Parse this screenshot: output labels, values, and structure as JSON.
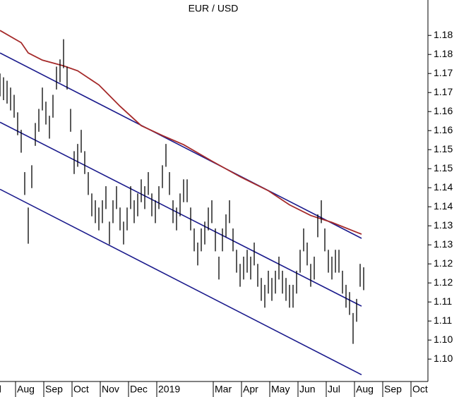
{
  "chart_data": {
    "type": "stock",
    "title": "EUR / USD",
    "xlim": [
      0.45,
      15.575
    ],
    "ylim": [
      1.0943,
      1.1943
    ],
    "xticks": [
      {
        "value": 0,
        "label": "Jul"
      },
      {
        "value": 1,
        "label": "Aug"
      },
      {
        "value": 2,
        "label": "Sep"
      },
      {
        "value": 3,
        "label": "Oct"
      },
      {
        "value": 4,
        "label": "Nov"
      },
      {
        "value": 5,
        "label": "Dec"
      },
      {
        "value": 6,
        "label": "2019"
      },
      {
        "value": 8,
        "label": "Mar"
      },
      {
        "value": 9,
        "label": "Apr"
      },
      {
        "value": 10,
        "label": "May"
      },
      {
        "value": 11,
        "label": "Jun"
      },
      {
        "value": 12,
        "label": "Jul"
      },
      {
        "value": 13,
        "label": "Aug"
      },
      {
        "value": 14,
        "label": "Sep"
      },
      {
        "value": 15,
        "label": "Oct"
      }
    ],
    "yticks": [
      {
        "value": 1.1,
        "label": "1.10"
      },
      {
        "value": 1.105,
        "label": "1.10"
      },
      {
        "value": 1.11,
        "label": "1.11"
      },
      {
        "value": 1.115,
        "label": "1.11"
      },
      {
        "value": 1.12,
        "label": "1.12"
      },
      {
        "value": 1.125,
        "label": "1.12"
      },
      {
        "value": 1.13,
        "label": "1.13"
      },
      {
        "value": 1.135,
        "label": "1.13"
      },
      {
        "value": 1.14,
        "label": "1.14"
      },
      {
        "value": 1.145,
        "label": "1.14"
      },
      {
        "value": 1.15,
        "label": "1.15"
      },
      {
        "value": 1.155,
        "label": "1.15"
      },
      {
        "value": 1.16,
        "label": "1.16"
      },
      {
        "value": 1.165,
        "label": "1.16"
      },
      {
        "value": 1.17,
        "label": "1.17"
      },
      {
        "value": 1.175,
        "label": "1.17"
      },
      {
        "value": 1.18,
        "label": "1.18"
      },
      {
        "value": 1.185,
        "label": "1.18"
      }
    ],
    "price": {
      "color": "#000000",
      "x": [
        0.45,
        0.575,
        0.7,
        0.825,
        0.95,
        1.075,
        1.2,
        1.325,
        1.45,
        1.575,
        1.7,
        1.825,
        1.95,
        2.075,
        2.2,
        2.325,
        2.45,
        2.575,
        2.7,
        2.825,
        2.95,
        3.075,
        3.2,
        3.325,
        3.45,
        3.575,
        3.7,
        3.825,
        3.95,
        4.075,
        4.2,
        4.325,
        4.45,
        4.575,
        4.7,
        4.825,
        4.95,
        5.075,
        5.2,
        5.325,
        5.45,
        5.575,
        5.7,
        5.825,
        5.95,
        6.075,
        6.2,
        6.325,
        6.45,
        6.575,
        6.7,
        6.825,
        6.95,
        7.075,
        7.2,
        7.325,
        7.45,
        7.575,
        7.7,
        7.825,
        7.95,
        8.075,
        8.2,
        8.325,
        8.45,
        8.575,
        8.7,
        8.825,
        8.95,
        9.075,
        9.2,
        9.325,
        9.45,
        9.575,
        9.7,
        9.825,
        9.95,
        10.075,
        10.2,
        10.325,
        10.45,
        10.575,
        10.7,
        10.825,
        10.95,
        11.075,
        11.2,
        11.325,
        11.45,
        11.575,
        11.7,
        11.825,
        11.95,
        12.075,
        12.2,
        12.325,
        12.45,
        12.575,
        12.7,
        12.825,
        12.95,
        13.075,
        13.2,
        13.325
      ],
      "high": [
        1.175,
        1.174,
        1.1731,
        1.1713,
        1.1694,
        1.1648,
        1.1602,
        1.1491,
        1.1398,
        1.1509,
        1.162,
        1.1657,
        1.1713,
        1.1676,
        1.1639,
        1.1694,
        1.1768,
        1.1787,
        1.184,
        1.1768,
        1.1657,
        1.1546,
        1.1565,
        1.1602,
        1.1546,
        1.1491,
        1.1435,
        1.1417,
        1.1398,
        1.1417,
        1.1454,
        1.1361,
        1.1417,
        1.1454,
        1.1398,
        1.1361,
        1.1398,
        1.1454,
        1.1417,
        1.1435,
        1.1472,
        1.1454,
        1.1491,
        1.1435,
        1.1417,
        1.1454,
        1.1509,
        1.1565,
        1.1491,
        1.1417,
        1.1398,
        1.1435,
        1.1472,
        1.1472,
        1.1398,
        1.1343,
        1.1306,
        1.1343,
        1.1361,
        1.1398,
        1.1417,
        1.1343,
        1.1269,
        1.1343,
        1.138,
        1.1417,
        1.1343,
        1.1287,
        1.125,
        1.1269,
        1.1287,
        1.1269,
        1.1306,
        1.125,
        1.1213,
        1.1195,
        1.1232,
        1.1213,
        1.1232,
        1.1269,
        1.1232,
        1.1213,
        1.1195,
        1.1195,
        1.1232,
        1.1287,
        1.1343,
        1.1306,
        1.125,
        1.1269,
        1.138,
        1.1417,
        1.1343,
        1.1287,
        1.1269,
        1.1287,
        1.1287,
        1.1232,
        1.1195,
        1.1176,
        1.1121,
        1.1158,
        1.125,
        1.1241
      ],
      "low": [
        1.169,
        1.168,
        1.1671,
        1.1653,
        1.1634,
        1.1588,
        1.1542,
        1.1431,
        1.1303,
        1.1449,
        1.156,
        1.1597,
        1.1653,
        1.1616,
        1.1579,
        1.1634,
        1.1708,
        1.1727,
        1.1764,
        1.1708,
        1.1597,
        1.1486,
        1.1505,
        1.1542,
        1.1486,
        1.1431,
        1.1375,
        1.1357,
        1.1338,
        1.1357,
        1.1394,
        1.1301,
        1.1357,
        1.1394,
        1.1338,
        1.1301,
        1.1338,
        1.1394,
        1.1357,
        1.1375,
        1.1412,
        1.1394,
        1.1431,
        1.1375,
        1.1357,
        1.1394,
        1.1449,
        1.1505,
        1.1431,
        1.1357,
        1.1338,
        1.1375,
        1.1412,
        1.1412,
        1.1338,
        1.1283,
        1.1246,
        1.1283,
        1.1301,
        1.1338,
        1.1357,
        1.1283,
        1.1209,
        1.1283,
        1.132,
        1.1357,
        1.1283,
        1.1227,
        1.119,
        1.1209,
        1.1227,
        1.1209,
        1.1246,
        1.119,
        1.1153,
        1.1135,
        1.1172,
        1.1153,
        1.1172,
        1.1209,
        1.1172,
        1.1153,
        1.1135,
        1.1135,
        1.1172,
        1.1227,
        1.1283,
        1.1246,
        1.119,
        1.1209,
        1.132,
        1.1357,
        1.1283,
        1.1227,
        1.1209,
        1.1227,
        1.1227,
        1.1172,
        1.1135,
        1.1116,
        1.104,
        1.1098,
        1.119,
        1.1181
      ]
    },
    "moving_average": {
      "color": "#a52a2a",
      "x": [
        0.45,
        1.2,
        1.45,
        1.95,
        2.7,
        3.2,
        3.95,
        4.7,
        5.45,
        6.2,
        6.95,
        7.95,
        8.95,
        9.95,
        10.7,
        11.45,
        12.2,
        13.25
      ],
      "values": [
        1.1863,
        1.1831,
        1.1804,
        1.1785,
        1.177,
        1.1757,
        1.172,
        1.1664,
        1.1613,
        1.1587,
        1.1563,
        1.152,
        1.1479,
        1.1442,
        1.1405,
        1.1377,
        1.1359,
        1.1328
      ]
    },
    "channel": {
      "color": "#1a1a8c",
      "lines": [
        {
          "x": [
            0.45,
            13.25
          ],
          "values": [
            1.1804,
            1.1317
          ]
        },
        {
          "x": [
            0.45,
            13.25
          ],
          "values": [
            1.1622,
            1.1139
          ]
        },
        {
          "x": [
            0.45,
            13.25
          ],
          "values": [
            1.1446,
            1.0959
          ]
        }
      ]
    }
  }
}
